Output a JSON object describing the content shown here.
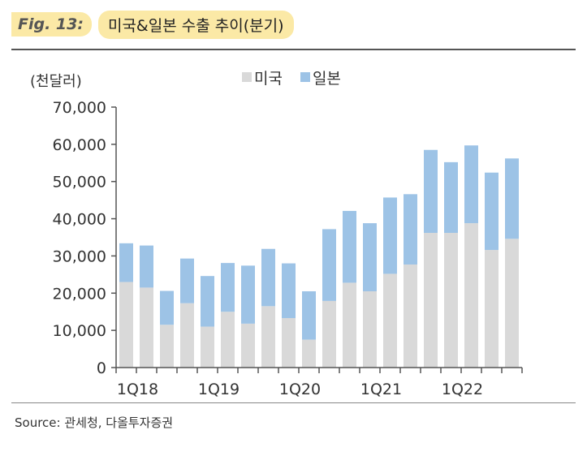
{
  "header": {
    "fig_label": "Fig. 13:",
    "title": "미국&일본 수출 추이(분기)"
  },
  "source": "Source: 관세청, 다올투자증권",
  "colors": {
    "us": "#d9d9d9",
    "japan": "#9dc3e6"
  },
  "chart_data": {
    "type": "bar",
    "stacked": true,
    "unit_label": "(천달러)",
    "ylim": [
      0,
      70000
    ],
    "y_ticks": [
      "0",
      "10,000",
      "20,000",
      "30,000",
      "40,000",
      "50,000",
      "60,000",
      "70,000"
    ],
    "y_tick_values": [
      0,
      10000,
      20000,
      30000,
      40000,
      50000,
      60000,
      70000
    ],
    "categories": [
      "1Q18",
      "2Q18",
      "3Q18",
      "4Q18",
      "1Q19",
      "2Q19",
      "3Q19",
      "4Q19",
      "1Q20",
      "2Q20",
      "3Q20",
      "4Q20",
      "1Q21",
      "2Q21",
      "3Q21",
      "4Q21",
      "1Q22",
      "2Q22",
      "3Q22",
      "4Q22"
    ],
    "x_tick_labels": [
      {
        "index": 0,
        "label": "1Q18"
      },
      {
        "index": 4,
        "label": "1Q19"
      },
      {
        "index": 8,
        "label": "1Q20"
      },
      {
        "index": 12,
        "label": "1Q21"
      },
      {
        "index": 16,
        "label": "1Q22"
      }
    ],
    "legend_position": "top",
    "series": [
      {
        "name": "미국",
        "values": [
          23000,
          21500,
          11500,
          17300,
          11000,
          15000,
          11800,
          16500,
          13300,
          7500,
          17900,
          22800,
          20500,
          25200,
          27700,
          36200,
          36200,
          38800,
          31600,
          34600
        ]
      },
      {
        "name": "일본",
        "values": [
          10400,
          11300,
          9100,
          12000,
          13600,
          13100,
          15600,
          15400,
          14700,
          13000,
          19300,
          19300,
          18300,
          20500,
          18900,
          22300,
          19000,
          20900,
          20800,
          21600
        ]
      }
    ]
  }
}
